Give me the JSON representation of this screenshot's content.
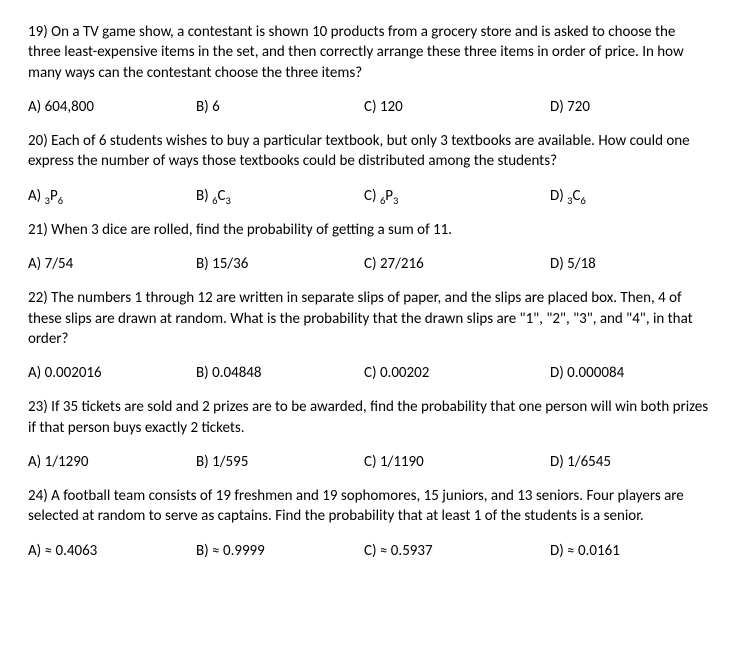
{
  "questions": [
    {
      "num": "19)",
      "text": "On a TV game show, a contestant is shown 10 products from a grocery store and is asked to choose the three least-expensive items in the set, and then correctly arrange these three items in order of price. In how many ways can the contestant choose the three items?",
      "a": "A) 604,800",
      "b": "B) 6",
      "c": "C) 120",
      "d": "D) 720"
    },
    {
      "num": "20)",
      "text": "Each of 6 students wishes to buy a particular textbook, but only 3 textbooks are available. How could one express the number of ways those textbooks could be distributed among the students?",
      "a_pre": "A) ",
      "a_s1": "3",
      "a_mid": "P",
      "a_s2": "6",
      "b_pre": "B) ",
      "b_s1": "6",
      "b_mid": "C",
      "b_s2": "3",
      "c_pre": "C) ",
      "c_s1": "6",
      "c_mid": "P",
      "c_s2": "3",
      "d_pre": "D) ",
      "d_s1": "3",
      "d_mid": "C",
      "d_s2": "6"
    },
    {
      "num": "21)",
      "text": "When 3 dice are rolled, find the probability of getting a sum of 11.",
      "a": "A) 7/54",
      "b": "B) 15/36",
      "c": "C) 27/216",
      "d": "D) 5/18"
    },
    {
      "num": "22)",
      "text": "The numbers 1 through 12 are written in separate slips of paper, and the slips are placed box. Then, 4 of these slips are drawn at random. What is the probability that the drawn slips are \"1\", \"2\", \"3\", and \"4\", in that order?",
      "a": "A) 0.002016",
      "b": "B) 0.04848",
      "c": "C) 0.00202",
      "d": "D) 0.000084"
    },
    {
      "num": "23)",
      "text": "If 35 tickets are sold and 2 prizes are to be awarded, find the probability that one person will win both prizes if that person buys exactly 2 tickets.",
      "a": "A) 1/1290",
      "b": "B) 1/595",
      "c": "C) 1/1190",
      "d": "D) 1/6545"
    },
    {
      "num": "24)",
      "text": "A football team consists of 19 freshmen and 19 sophomores, 15 juniors, and 13 seniors. Four players are selected at random to serve as captains. Find the probability that at least 1 of the students is a senior.",
      "a": "A) ≈ 0.4063",
      "b": "B) ≈ 0.9999",
      "c": "C) ≈ 0.5937",
      "d": "D) ≈ 0.0161"
    }
  ]
}
